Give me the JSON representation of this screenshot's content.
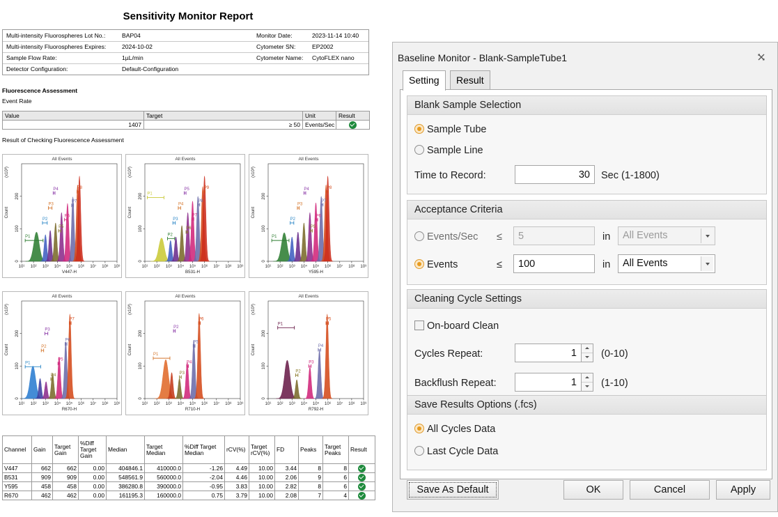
{
  "report": {
    "title": "Sensitivity Monitor Report",
    "info": {
      "lot_label": "Multi-intensity Fluorospheres Lot No.:",
      "lot_value": "BAP04",
      "expires_label": "Multi-intensity Fluorospheres Expires:",
      "expires_value": "2024-10-02",
      "flow_label": "Sample Flow Rate:",
      "flow_value": "1µL/min",
      "detector_label": "Detector Configuration:",
      "detector_value": "Default-Configuration",
      "monitor_date_label": "Monitor Date:",
      "monitor_date_value": "2023-11-14 10:40",
      "sn_label": "Cytometer SN:",
      "sn_value": "EP2002",
      "name_label": "Cytometer Name:",
      "name_value": "CytoFLEX nano"
    },
    "fluorescence_heading": "Fluorescence Assessment",
    "event_rate_heading": "Event Rate",
    "event_table": {
      "headers": [
        "Value",
        "Target",
        "Unit",
        "Result"
      ],
      "value": "1407",
      "target": "≥ 50",
      "unit": "Events/Sec"
    },
    "checking_heading": "Result of Checking Fluorescence Assessment",
    "results_table": {
      "headers": [
        "Channel",
        "Gain",
        "Target Gain",
        "%Diff Target Gain",
        "Median",
        "Target Median",
        "%Diff Target Median",
        "rCV(%)",
        "Target rCV(%)",
        "FD",
        "Peaks",
        "Target Peaks",
        "Result"
      ],
      "rows": [
        [
          "V447",
          "662",
          "662",
          "0.00",
          "404846.1",
          "410000.0",
          "-1.26",
          "4.49",
          "10.00",
          "3.44",
          "8",
          "8"
        ],
        [
          "B531",
          "909",
          "909",
          "0.00",
          "548561.9",
          "560000.0",
          "-2.04",
          "4.46",
          "10.00",
          "2.06",
          "9",
          "6"
        ],
        [
          "Y595",
          "458",
          "458",
          "0.00",
          "386280.8",
          "390000.0",
          "-0.95",
          "3.83",
          "10.00",
          "2.82",
          "8",
          "6"
        ],
        [
          "R670",
          "462",
          "462",
          "0.00",
          "161195.3",
          "160000.0",
          "0.75",
          "3.79",
          "10.00",
          "2.08",
          "7",
          "4"
        ]
      ]
    }
  },
  "chart_data": [
    {
      "type": "histogram",
      "title": "All Events",
      "xlabel": "V447-H",
      "ylabel": "Count",
      "y_multiplier": "(x10³)",
      "x_scale": "log",
      "x_range": [
        10,
        1000000000
      ],
      "x_ticks": [
        "10¹",
        "10²",
        "10³",
        "10⁴",
        "10⁵",
        "10⁶",
        "10⁷",
        "10⁸",
        "10⁹"
      ],
      "y_range": [
        0,
        300
      ],
      "y_ticks": [
        "0",
        "100",
        "200"
      ],
      "peaks": [
        {
          "center_log": 2.25,
          "height": 90,
          "color": "#2e7d32"
        },
        {
          "center_log": 3.0,
          "height": 82,
          "color": "#3f5fc0"
        },
        {
          "center_log": 3.4,
          "height": 95,
          "color": "#6a2c8c"
        },
        {
          "center_log": 3.85,
          "height": 118,
          "color": "#7a6a2a"
        },
        {
          "center_log": 4.35,
          "height": 150,
          "color": "#8b2b8b"
        },
        {
          "center_log": 4.85,
          "height": 178,
          "color": "#d0257a"
        },
        {
          "center_log": 5.3,
          "height": 198,
          "color": "#6a6aa8"
        },
        {
          "center_log": 5.7,
          "height": 235,
          "color": "#d44a1a"
        },
        {
          "center_log": 5.85,
          "height": 262,
          "color": "#cc2c1c"
        }
      ],
      "gates": [
        {
          "label": "P1",
          "from_log": 1.3,
          "to_log": 2.8,
          "y": 64,
          "color": "#2e7d32"
        },
        {
          "label": "P2",
          "from_log": 2.75,
          "to_log": 3.15,
          "y": 118,
          "color": "#2a86c6"
        },
        {
          "label": "P3",
          "from_log": 3.25,
          "to_log": 3.55,
          "y": 164,
          "color": "#d4752b"
        },
        {
          "label": "P4",
          "from_log": 3.65,
          "to_log": 3.8,
          "y": 210,
          "color": "#8b3aa8"
        },
        {
          "label": "P5",
          "from_log": 4.1,
          "to_log": 4.3,
          "y": 94,
          "color": "#8a7a2a"
        },
        {
          "label": "P6",
          "from_log": 4.6,
          "to_log": 4.8,
          "y": 128,
          "color": "#d0257a"
        },
        {
          "label": "P7",
          "from_log": 5.2,
          "to_log": 5.35,
          "y": 172,
          "color": "#6a6aa8"
        },
        {
          "label": "P8",
          "from_log": 5.65,
          "to_log": 5.85,
          "y": 214,
          "color": "#d44a1a"
        }
      ]
    },
    {
      "type": "histogram",
      "title": "All Events",
      "xlabel": "B531-H",
      "ylabel": "Count",
      "y_multiplier": "(x10³)",
      "x_scale": "log",
      "x_range": [
        10,
        1000000000
      ],
      "x_ticks": [
        "10¹",
        "10²",
        "10³",
        "10⁴",
        "10⁵",
        "10⁶",
        "10⁷",
        "10⁸",
        "10⁹"
      ],
      "y_range": [
        0,
        300
      ],
      "y_ticks": [
        "0",
        "100",
        "200"
      ],
      "peaks": [
        {
          "center_log": 2.4,
          "height": 72,
          "color": "#c9c936"
        },
        {
          "center_log": 3.15,
          "height": 64,
          "color": "#3f5fc0"
        },
        {
          "center_log": 3.6,
          "height": 75,
          "color": "#6a2c8c"
        },
        {
          "center_log": 4.1,
          "height": 110,
          "color": "#7a6a2a"
        },
        {
          "center_log": 4.6,
          "height": 150,
          "color": "#8b2b8b"
        },
        {
          "center_log": 5.0,
          "height": 185,
          "color": "#d0257a"
        },
        {
          "center_log": 5.45,
          "height": 200,
          "color": "#6a6aa8"
        },
        {
          "center_log": 5.85,
          "height": 230,
          "color": "#d44a1a"
        },
        {
          "center_log": 6.0,
          "height": 262,
          "color": "#cc2c1c"
        }
      ],
      "gates": [
        {
          "label": "P1",
          "from_log": 1.2,
          "to_log": 2.6,
          "y": 196,
          "color": "#c9c936"
        },
        {
          "label": "P2",
          "from_log": 2.9,
          "to_log": 3.5,
          "y": 70,
          "color": "#2e7d32"
        },
        {
          "label": "P3",
          "from_log": 3.35,
          "to_log": 3.55,
          "y": 118,
          "color": "#2a86c6"
        },
        {
          "label": "P4",
          "from_log": 3.8,
          "to_log": 4.0,
          "y": 164,
          "color": "#d4752b"
        },
        {
          "label": "P5",
          "from_log": 4.3,
          "to_log": 4.45,
          "y": 210,
          "color": "#8b3aa8"
        },
        {
          "label": "P6",
          "from_log": 4.45,
          "to_log": 4.6,
          "y": 90,
          "color": "#8a7a2a"
        },
        {
          "label": "P7",
          "from_log": 4.95,
          "to_log": 5.1,
          "y": 130,
          "color": "#d0257a"
        },
        {
          "label": "P8",
          "from_log": 5.45,
          "to_log": 5.6,
          "y": 174,
          "color": "#6a6aa8"
        },
        {
          "label": "P9",
          "from_log": 5.95,
          "to_log": 6.05,
          "y": 214,
          "color": "#d44a1a"
        }
      ]
    },
    {
      "type": "histogram",
      "title": "All Events",
      "xlabel": "Y595-H",
      "ylabel": "Count",
      "y_multiplier": "(x10³)",
      "x_scale": "log",
      "x_range": [
        10,
        1000000000
      ],
      "x_ticks": [
        "10¹",
        "10²",
        "10³",
        "10⁴",
        "10⁵",
        "10⁶",
        "10⁷",
        "10⁸",
        "10⁹"
      ],
      "y_range": [
        0,
        300
      ],
      "y_ticks": [
        "0",
        "100",
        "200"
      ],
      "peaks": [
        {
          "center_log": 2.35,
          "height": 88,
          "color": "#2e7d32"
        },
        {
          "center_log": 3.0,
          "height": 75,
          "color": "#3f5fc0"
        },
        {
          "center_log": 3.5,
          "height": 90,
          "color": "#6a2c8c"
        },
        {
          "center_log": 4.0,
          "height": 118,
          "color": "#7a6a2a"
        },
        {
          "center_log": 4.5,
          "height": 150,
          "color": "#8b2b8b"
        },
        {
          "center_log": 5.0,
          "height": 180,
          "color": "#d0257a"
        },
        {
          "center_log": 5.45,
          "height": 200,
          "color": "#6a6aa8"
        },
        {
          "center_log": 5.85,
          "height": 235,
          "color": "#d44a1a"
        },
        {
          "center_log": 6.0,
          "height": 262,
          "color": "#cc2c1c"
        }
      ],
      "gates": [
        {
          "label": "P1",
          "from_log": 1.3,
          "to_log": 2.75,
          "y": 64,
          "color": "#2e7d32"
        },
        {
          "label": "P2",
          "from_log": 2.85,
          "to_log": 3.15,
          "y": 118,
          "color": "#2a86c6"
        },
        {
          "label": "P3",
          "from_log": 3.45,
          "to_log": 3.6,
          "y": 164,
          "color": "#d4752b"
        },
        {
          "label": "P4",
          "from_log": 4.0,
          "to_log": 4.15,
          "y": 210,
          "color": "#8b3aa8"
        },
        {
          "label": "P5",
          "from_log": 4.55,
          "to_log": 4.7,
          "y": 94,
          "color": "#8a7a2a"
        },
        {
          "label": "P6",
          "from_log": 5.0,
          "to_log": 5.15,
          "y": 128,
          "color": "#d0257a"
        },
        {
          "label": "P7",
          "from_log": 5.45,
          "to_log": 5.6,
          "y": 174,
          "color": "#6a6aa8"
        },
        {
          "label": "P8",
          "from_log": 5.9,
          "to_log": 6.05,
          "y": 214,
          "color": "#d44a1a"
        }
      ]
    },
    {
      "type": "histogram",
      "title": "All Events",
      "xlabel": "R670-H",
      "ylabel": "Count",
      "y_multiplier": "(x10³)",
      "x_scale": "log",
      "x_range": [
        10,
        1000000000
      ],
      "x_ticks": [
        "10¹",
        "10²",
        "10³",
        "10⁴",
        "10⁵",
        "10⁶",
        "10⁷",
        "10⁸",
        "10⁹"
      ],
      "y_range": [
        0,
        300
      ],
      "y_ticks": [
        "0",
        "100",
        "200"
      ],
      "peaks": [
        {
          "center_log": 1.95,
          "height": 100,
          "color": "#2a7cd0"
        },
        {
          "center_log": 2.55,
          "height": 62,
          "color": "#3f3fa0"
        },
        {
          "center_log": 3.05,
          "height": 52,
          "color": "#8b2b8b"
        },
        {
          "center_log": 3.6,
          "height": 78,
          "color": "#7a6a2a"
        },
        {
          "center_log": 4.15,
          "height": 128,
          "color": "#d0257a"
        },
        {
          "center_log": 4.7,
          "height": 175,
          "color": "#6a6aa8"
        },
        {
          "center_log": 5.05,
          "height": 260,
          "color": "#d44a1a"
        }
      ],
      "gates": [
        {
          "label": "P1",
          "from_log": 1.3,
          "to_log": 2.6,
          "y": 98,
          "color": "#2a86c6"
        },
        {
          "label": "P2",
          "from_log": 2.65,
          "to_log": 2.85,
          "y": 148,
          "color": "#d4752b"
        },
        {
          "label": "P3",
          "from_log": 2.95,
          "to_log": 3.2,
          "y": 200,
          "color": "#8b3aa8"
        },
        {
          "label": "P4",
          "from_log": 3.45,
          "to_log": 3.6,
          "y": 60,
          "color": "#8a7a2a"
        },
        {
          "label": "P5",
          "from_log": 4.05,
          "to_log": 4.2,
          "y": 108,
          "color": "#d0257a"
        },
        {
          "label": "P6",
          "from_log": 4.65,
          "to_log": 4.8,
          "y": 168,
          "color": "#6a6aa8"
        },
        {
          "label": "P7",
          "from_log": 5.0,
          "to_log": 5.15,
          "y": 232,
          "color": "#d44a1a"
        }
      ]
    },
    {
      "type": "histogram",
      "title": "All Events",
      "xlabel": "R710-H",
      "ylabel": "Count",
      "y_multiplier": "(x10³)",
      "x_scale": "log",
      "x_range": [
        10,
        1000000000
      ],
      "x_ticks": [
        "10¹",
        "10²",
        "10³",
        "10⁴",
        "10⁵",
        "10⁶",
        "10⁷",
        "10⁸",
        "10⁹"
      ],
      "y_range": [
        0,
        300
      ],
      "y_ticks": [
        "0",
        "100",
        "200"
      ],
      "peaks": [
        {
          "center_log": 2.75,
          "height": 120,
          "color": "#e06a2a"
        },
        {
          "center_log": 3.25,
          "height": 80,
          "color": "#c43a1a"
        },
        {
          "center_log": 3.9,
          "height": 62,
          "color": "#7a6a2a"
        },
        {
          "center_log": 4.55,
          "height": 112,
          "color": "#d0257a"
        },
        {
          "center_log": 5.1,
          "height": 180,
          "color": "#6a6aa8"
        },
        {
          "center_log": 5.55,
          "height": 262,
          "color": "#d44a1a"
        }
      ],
      "gates": [
        {
          "label": "P1",
          "from_log": 1.7,
          "to_log": 3.1,
          "y": 124,
          "color": "#d4752b"
        },
        {
          "label": "P2",
          "from_log": 3.4,
          "to_log": 3.55,
          "y": 208,
          "color": "#8b3aa8"
        },
        {
          "label": "P3",
          "from_log": 3.9,
          "to_log": 4.05,
          "y": 66,
          "color": "#8a7a2a"
        },
        {
          "label": "P4",
          "from_log": 4.5,
          "to_log": 4.65,
          "y": 100,
          "color": "#d0257a"
        },
        {
          "label": "P5",
          "from_log": 5.05,
          "to_log": 5.2,
          "y": 162,
          "color": "#6a6aa8"
        },
        {
          "label": "P6",
          "from_log": 5.5,
          "to_log": 5.65,
          "y": 232,
          "color": "#d44a1a"
        }
      ]
    },
    {
      "type": "histogram",
      "title": "All Events",
      "xlabel": "R792-H",
      "ylabel": "Count",
      "y_multiplier": "(x10³)",
      "x_scale": "log",
      "x_range": [
        10,
        1000000000
      ],
      "x_ticks": [
        "10¹",
        "10²",
        "10³",
        "10⁴",
        "10⁵",
        "10⁶",
        "10⁷",
        "10⁸",
        "10⁹"
      ],
      "y_range": [
        0,
        300
      ],
      "y_ticks": [
        "0",
        "100",
        "200"
      ],
      "peaks": [
        {
          "center_log": 2.6,
          "height": 118,
          "color": "#6a1e4a"
        },
        {
          "center_log": 3.4,
          "height": 58,
          "color": "#7a6a2a"
        },
        {
          "center_log": 4.5,
          "height": 98,
          "color": "#d0257a"
        },
        {
          "center_log": 5.3,
          "height": 150,
          "color": "#6a6aa8"
        },
        {
          "center_log": 5.95,
          "height": 260,
          "color": "#d44a1a"
        }
      ],
      "gates": [
        {
          "label": "P1",
          "from_log": 1.8,
          "to_log": 3.2,
          "y": 218,
          "color": "#6a1e4a"
        },
        {
          "label": "P2",
          "from_log": 3.3,
          "to_log": 3.5,
          "y": 72,
          "color": "#8a7a2a"
        },
        {
          "label": "P3",
          "from_log": 4.4,
          "to_log": 4.6,
          "y": 100,
          "color": "#d0257a"
        },
        {
          "label": "P4",
          "from_log": 5.2,
          "to_log": 5.4,
          "y": 150,
          "color": "#6a6aa8"
        },
        {
          "label": "P5",
          "from_log": 5.85,
          "to_log": 6.05,
          "y": 232,
          "color": "#d44a1a"
        }
      ]
    }
  ],
  "dialog": {
    "title": "Baseline Monitor - Blank-SampleTube1",
    "tabs": [
      "Setting",
      "Result"
    ],
    "blank": {
      "heading": "Blank Sample Selection",
      "sample_tube": "Sample Tube",
      "sample_line": "Sample Line",
      "time_label": "Time to Record:",
      "time_value": "30",
      "time_unit": "Sec  (1-1800)"
    },
    "acceptance": {
      "heading": "Acceptance Criteria",
      "events_sec_label": "Events/Sec",
      "events_sec_op": "≤",
      "events_sec_value": "5",
      "events_label": "Events",
      "events_op": "≤",
      "events_value": "100",
      "in_label": "in",
      "select_value": "All Events"
    },
    "cleaning": {
      "heading": "Cleaning Cycle Settings",
      "onboard_label": "On-board Clean",
      "cycles_label": "Cycles Repeat:",
      "cycles_value": "1",
      "cycles_range": "(0-10)",
      "backflush_label": "Backflush Repeat:",
      "backflush_value": "1",
      "backflush_range": "(1-10)"
    },
    "save": {
      "heading": "Save Results Options (.fcs)",
      "all_cycles": "All Cycles Data",
      "last_cycle": "Last Cycle Data"
    },
    "buttons": {
      "save_default": "Save As Default",
      "ok": "OK",
      "cancel": "Cancel",
      "apply": "Apply"
    }
  }
}
